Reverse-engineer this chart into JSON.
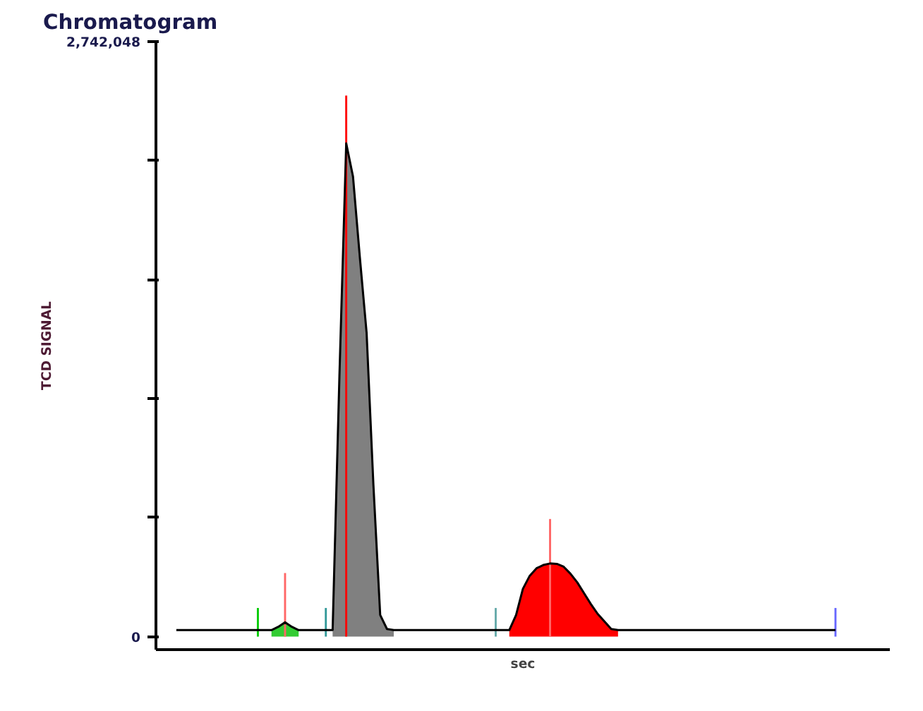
{
  "chart_data": {
    "type": "line",
    "title": "Chromatogram",
    "xlabel": "sec",
    "ylabel": "TCD SIGNAL",
    "ylim": [
      -60000,
      2742048
    ],
    "annotations": [
      "0"
    ],
    "yticks": [
      0,
      {
        "value": 548410,
        "label": null
      },
      {
        "value": 1096819,
        "label": null
      },
      {
        "value": 1645229,
        "label": null
      },
      {
        "value": 2193638,
        "label": null
      },
      {
        "value": 2742048,
        "label": "2,742,048"
      }
    ],
    "grid": false,
    "marker": "none",
    "line_style": "solid",
    "categories": [
      null,
      null,
      null,
      null,
      null,
      null,
      null,
      null,
      null,
      null,
      null,
      null,
      null,
      null,
      null,
      null,
      null,
      null,
      null,
      null,
      null,
      null,
      null,
      null,
      null,
      null,
      null,
      null,
      null,
      null,
      null,
      null,
      null,
      null,
      null,
      null,
      null,
      null,
      null,
      null,
      null,
      null,
      null,
      null,
      null,
      null,
      null,
      null,
      null,
      null,
      null,
      null,
      null,
      null,
      null,
      null,
      null,
      null,
      null,
      null,
      null,
      null,
      null,
      null,
      null,
      null,
      null,
      null,
      null,
      null,
      null,
      null,
      null,
      null,
      null,
      null,
      null,
      null,
      null,
      null,
      null,
      null,
      null,
      null,
      null,
      null,
      null,
      null,
      null,
      null,
      null,
      null,
      null,
      null,
      null,
      null,
      null,
      null
    ],
    "series": [
      {
        "color": "#000000",
        "values": [
          30000,
          30000,
          30000,
          30000,
          30000,
          30000,
          30000,
          30000,
          30000,
          30000,
          30000,
          30000,
          30000,
          30000,
          30000,
          45000,
          66000,
          45000,
          30000,
          30000,
          30000,
          30000,
          30000,
          30000,
          1200000,
          2273000,
          2120000,
          1750000,
          1400000,
          700000,
          100000,
          35000,
          30000,
          30000,
          30000,
          30000,
          30000,
          30000,
          30000,
          30000,
          30000,
          30000,
          30000,
          30000,
          30000,
          30000,
          30000,
          30000,
          30000,
          30000,
          100000,
          220000,
          280000,
          315000,
          330000,
          337000,
          335000,
          322000,
          290000,
          250000,
          200000,
          150000,
          105000,
          70000,
          35000,
          30000,
          30000,
          30000,
          30000,
          30000,
          30000,
          30000,
          30000,
          30000,
          30000,
          30000,
          30000,
          30000,
          30000,
          30000,
          30000,
          30000,
          30000,
          30000,
          30000,
          30000,
          30000,
          30000,
          30000,
          30000,
          30000,
          30000,
          30000,
          30000,
          30000,
          30000,
          30000,
          30000
        ]
      },
      {
        "type": "area",
        "color": "#33cc33",
        "values": [
          null,
          null,
          null,
          null,
          null,
          null,
          null,
          null,
          null,
          null,
          null,
          null,
          null,
          null,
          30000,
          45000,
          66000,
          45000,
          30000,
          null,
          null,
          null,
          null,
          null,
          null,
          null,
          null,
          null,
          null,
          null,
          null,
          null,
          null,
          null,
          null,
          null,
          null,
          null,
          null,
          null,
          null,
          null,
          null,
          null,
          null,
          null,
          null,
          null,
          null,
          null,
          null,
          null,
          null,
          null,
          null,
          null,
          null,
          null,
          null,
          null,
          null,
          null,
          null,
          null,
          null,
          null,
          null,
          null,
          null,
          null,
          null,
          null,
          null,
          null,
          null,
          null,
          null,
          null,
          null,
          null,
          null,
          null,
          null,
          null,
          null,
          null,
          null,
          null,
          null,
          null,
          null,
          null,
          null,
          null,
          null,
          null,
          null,
          null
        ]
      },
      {
        "type": "area",
        "color": "#808080",
        "values": [
          null,
          null,
          null,
          null,
          null,
          null,
          null,
          null,
          null,
          null,
          null,
          null,
          null,
          null,
          null,
          null,
          null,
          null,
          null,
          null,
          null,
          null,
          null,
          30000,
          1200000,
          2273000,
          2120000,
          1750000,
          1400000,
          700000,
          100000,
          35000,
          30000,
          null,
          null,
          null,
          null,
          null,
          null,
          null,
          null,
          null,
          null,
          null,
          null,
          null,
          null,
          null,
          null,
          null,
          null,
          null,
          null,
          null,
          null,
          null,
          null,
          null,
          null,
          null,
          null,
          null,
          null,
          null,
          null,
          null,
          null,
          null,
          null,
          null,
          null,
          null,
          null,
          null,
          null,
          null,
          null,
          null,
          null,
          null,
          null,
          null,
          null,
          null,
          null,
          null,
          null,
          null,
          null,
          null,
          null,
          null,
          null,
          null,
          null,
          null,
          null,
          null
        ]
      },
      {
        "type": "area",
        "color": "#ff0000",
        "values": [
          null,
          null,
          null,
          null,
          null,
          null,
          null,
          null,
          null,
          null,
          null,
          null,
          null,
          null,
          null,
          null,
          null,
          null,
          null,
          null,
          null,
          null,
          null,
          null,
          null,
          null,
          null,
          null,
          null,
          null,
          null,
          null,
          null,
          null,
          null,
          null,
          null,
          null,
          null,
          null,
          null,
          null,
          null,
          null,
          null,
          null,
          null,
          null,
          null,
          30000,
          100000,
          220000,
          280000,
          315000,
          330000,
          337000,
          335000,
          322000,
          290000,
          250000,
          200000,
          150000,
          105000,
          70000,
          35000,
          30000,
          null,
          null,
          null,
          null,
          null,
          null,
          null,
          null,
          null,
          null,
          null,
          null,
          null,
          null,
          null,
          null,
          null,
          null,
          null,
          null,
          null,
          null,
          null,
          null,
          null,
          null,
          null,
          null,
          null,
          null,
          null,
          null
        ]
      },
      {
        "type": "bar",
        "values": [
          null,
          null,
          null,
          null,
          null,
          null,
          null,
          null,
          null,
          null,
          null,
          null,
          132000,
          null,
          null,
          null,
          293000,
          null,
          null,
          null,
          null,
          null,
          132000,
          null,
          null,
          2493000,
          null,
          null,
          null,
          null,
          null,
          null,
          null,
          null,
          null,
          null,
          null,
          null,
          null,
          null,
          null,
          null,
          null,
          null,
          null,
          null,
          null,
          132000,
          null,
          null,
          null,
          null,
          null,
          null,
          null,
          542000,
          null,
          null,
          null,
          null,
          null,
          null,
          null,
          null,
          null,
          null,
          null,
          null,
          null,
          null,
          null,
          null,
          null,
          null,
          null,
          null,
          null,
          null,
          null,
          null,
          null,
          null,
          null,
          null,
          null,
          null,
          null,
          null,
          null,
          null,
          null,
          null,
          null,
          null,
          null,
          null,
          null,
          132000
        ],
        "colors": [
          null,
          null,
          null,
          null,
          null,
          null,
          null,
          null,
          null,
          null,
          null,
          null,
          "#00cc00",
          null,
          null,
          null,
          "#ff6666",
          null,
          null,
          null,
          null,
          null,
          "#339999",
          null,
          null,
          "#ff0000",
          null,
          null,
          null,
          null,
          null,
          null,
          null,
          null,
          null,
          null,
          null,
          null,
          null,
          null,
          null,
          null,
          null,
          null,
          null,
          null,
          null,
          "#66aaaa",
          null,
          null,
          null,
          null,
          null,
          null,
          null,
          "#ff6666",
          null,
          null,
          null,
          null,
          null,
          null,
          null,
          null,
          null,
          null,
          null,
          null,
          null,
          null,
          null,
          null,
          null,
          null,
          null,
          null,
          null,
          null,
          null,
          null,
          null,
          null,
          null,
          null,
          null,
          null,
          null,
          null,
          null,
          null,
          null,
          null,
          null,
          null,
          null,
          null,
          null,
          "#6666ff"
        ]
      }
    ]
  }
}
